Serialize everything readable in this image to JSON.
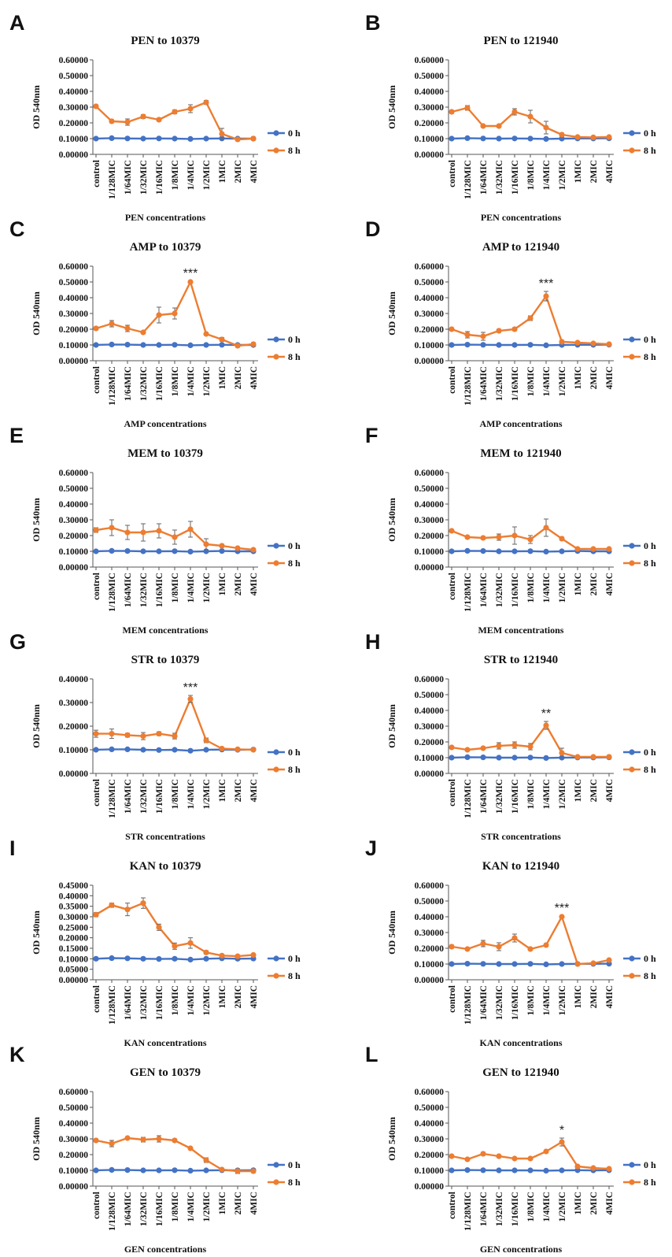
{
  "colors": {
    "series_0h": "#4472C4",
    "series_8h": "#ED7D31",
    "axis": "#555555",
    "errorbar": "#666666"
  },
  "chart_data": [
    {
      "panel": "A",
      "type": "line",
      "title": "PEN to 10379",
      "xlabel": "PEN concentrations",
      "ylabel": "OD 540nm",
      "ylim": [
        0,
        0.6
      ],
      "ytick_step": 0.1,
      "categories": [
        "control",
        "1/128MIC",
        "1/64MIC",
        "1/32MIC",
        "1/16MIC",
        "1/8MIC",
        "1/4MIC",
        "1/2MIC",
        "1MIC",
        "2MIC",
        "4MIC"
      ],
      "series": [
        {
          "name": "0 h",
          "values": [
            0.1,
            0.103,
            0.101,
            0.1,
            0.101,
            0.1,
            0.098,
            0.1,
            0.101,
            0.1,
            0.1
          ],
          "errors": [
            0.004,
            0.004,
            0.004,
            0.004,
            0.004,
            0.004,
            0.004,
            0.004,
            0.004,
            0.004,
            0.004
          ]
        },
        {
          "name": "8 h",
          "values": [
            0.305,
            0.21,
            0.205,
            0.24,
            0.22,
            0.27,
            0.29,
            0.33,
            0.13,
            0.095,
            0.1
          ],
          "errors": [
            0.01,
            0.01,
            0.02,
            0.012,
            0.01,
            0.012,
            0.025,
            0.012,
            0.035,
            0.01,
            0.01
          ]
        }
      ],
      "annotations": []
    },
    {
      "panel": "B",
      "type": "line",
      "title": "PEN to 121940",
      "xlabel": "PEN concentrations",
      "ylabel": "OD 540nm",
      "ylim": [
        0,
        0.6
      ],
      "ytick_step": 0.1,
      "categories": [
        "control",
        "1/128MIC",
        "1/64MIC",
        "1/32MIC",
        "1/16MIC",
        "1/8MIC",
        "1/4MIC",
        "1/2MIC",
        "1MIC",
        "2MIC",
        "4MIC"
      ],
      "series": [
        {
          "name": "0 h",
          "values": [
            0.1,
            0.103,
            0.101,
            0.1,
            0.101,
            0.1,
            0.098,
            0.1,
            0.101,
            0.101,
            0.102
          ],
          "errors": [
            0.004,
            0.004,
            0.004,
            0.004,
            0.004,
            0.004,
            0.004,
            0.004,
            0.004,
            0.004,
            0.004
          ]
        },
        {
          "name": "8 h",
          "values": [
            0.27,
            0.295,
            0.18,
            0.18,
            0.27,
            0.24,
            0.17,
            0.125,
            0.11,
            0.108,
            0.11
          ],
          "errors": [
            0.01,
            0.015,
            0.005,
            0.005,
            0.02,
            0.04,
            0.04,
            0.01,
            0.005,
            0.005,
            0.005
          ]
        }
      ],
      "annotations": []
    },
    {
      "panel": "C",
      "type": "line",
      "title": "AMP to 10379",
      "xlabel": "AMP concentrations",
      "ylabel": "OD 540nm",
      "ylim": [
        0,
        0.6
      ],
      "ytick_step": 0.1,
      "categories": [
        "control",
        "1/128MIC",
        "1/64MIC",
        "1/32MIC",
        "1/16MIC",
        "1/8MIC",
        "1/4MIC",
        "1/2MIC",
        "1MIC",
        "2MIC",
        "4MIC"
      ],
      "series": [
        {
          "name": "0 h",
          "values": [
            0.1,
            0.103,
            0.102,
            0.1,
            0.1,
            0.101,
            0.098,
            0.1,
            0.101,
            0.1,
            0.1
          ],
          "errors": [
            0.004,
            0.004,
            0.004,
            0.004,
            0.004,
            0.004,
            0.004,
            0.004,
            0.004,
            0.004,
            0.004
          ]
        },
        {
          "name": "8 h",
          "values": [
            0.205,
            0.235,
            0.205,
            0.18,
            0.29,
            0.3,
            0.5,
            0.17,
            0.135,
            0.095,
            0.105
          ],
          "errors": [
            0.01,
            0.02,
            0.02,
            0.008,
            0.05,
            0.035,
            0.005,
            0.005,
            0.012,
            0.01,
            0.01
          ]
        }
      ],
      "annotations": [
        {
          "category": "1/4MIC",
          "text": "***"
        }
      ]
    },
    {
      "panel": "D",
      "type": "line",
      "title": "AMP to 121940",
      "xlabel": "AMP concentrations",
      "ylabel": "OD 540nm",
      "ylim": [
        0,
        0.6
      ],
      "ytick_step": 0.1,
      "categories": [
        "control",
        "1/128MIC",
        "1/64MIC",
        "1/32MIC",
        "1/16MIC",
        "1/8MIC",
        "1/4MIC",
        "1/2MIC",
        "1MIC",
        "2MIC",
        "4MIC"
      ],
      "series": [
        {
          "name": "0 h",
          "values": [
            0.1,
            0.102,
            0.101,
            0.1,
            0.1,
            0.101,
            0.098,
            0.1,
            0.101,
            0.101,
            0.102
          ],
          "errors": [
            0.004,
            0.004,
            0.004,
            0.004,
            0.004,
            0.004,
            0.004,
            0.004,
            0.004,
            0.004,
            0.004
          ]
        },
        {
          "name": "8 h",
          "values": [
            0.2,
            0.165,
            0.155,
            0.19,
            0.2,
            0.27,
            0.41,
            0.12,
            0.115,
            0.11,
            0.105
          ],
          "errors": [
            0.008,
            0.02,
            0.025,
            0.01,
            0.01,
            0.015,
            0.03,
            0.01,
            0.005,
            0.005,
            0.005
          ]
        }
      ],
      "annotations": [
        {
          "category": "1/4MIC",
          "text": "***"
        }
      ]
    },
    {
      "panel": "E",
      "type": "line",
      "title": "MEM to 10379",
      "xlabel": "MEM concentrations",
      "ylabel": "OD 540nm",
      "ylim": [
        0,
        0.6
      ],
      "ytick_step": 0.1,
      "categories": [
        "control",
        "1/128MIC",
        "1/64MIC",
        "1/32MIC",
        "1/16MIC",
        "1/8MIC",
        "1/4MIC",
        "1/2MIC",
        "1MIC",
        "2MIC",
        "4MIC"
      ],
      "series": [
        {
          "name": "0 h",
          "values": [
            0.1,
            0.103,
            0.102,
            0.1,
            0.1,
            0.101,
            0.098,
            0.1,
            0.102,
            0.1,
            0.1
          ],
          "errors": [
            0.004,
            0.004,
            0.004,
            0.004,
            0.004,
            0.004,
            0.004,
            0.004,
            0.004,
            0.004,
            0.004
          ]
        },
        {
          "name": "8 h",
          "values": [
            0.235,
            0.25,
            0.22,
            0.22,
            0.23,
            0.19,
            0.24,
            0.145,
            0.135,
            0.12,
            0.11
          ],
          "errors": [
            0.015,
            0.05,
            0.045,
            0.055,
            0.045,
            0.045,
            0.05,
            0.035,
            0.01,
            0.005,
            0.008
          ]
        }
      ],
      "annotations": []
    },
    {
      "panel": "F",
      "type": "line",
      "title": "MEM to 121940",
      "xlabel": "MEM concentrations",
      "ylabel": "OD 540nm",
      "ylim": [
        0,
        0.6
      ],
      "ytick_step": 0.1,
      "categories": [
        "control",
        "1/128MIC",
        "1/64MIC",
        "1/32MIC",
        "1/16MIC",
        "1/8MIC",
        "1/4MIC",
        "1/2MIC",
        "1MIC",
        "2MIC",
        "4MIC"
      ],
      "series": [
        {
          "name": "0 h",
          "values": [
            0.1,
            0.103,
            0.102,
            0.1,
            0.1,
            0.101,
            0.098,
            0.1,
            0.102,
            0.1,
            0.1
          ],
          "errors": [
            0.004,
            0.004,
            0.004,
            0.004,
            0.004,
            0.004,
            0.004,
            0.004,
            0.004,
            0.004,
            0.004
          ]
        },
        {
          "name": "8 h",
          "values": [
            0.23,
            0.19,
            0.185,
            0.19,
            0.2,
            0.175,
            0.25,
            0.18,
            0.115,
            0.115,
            0.115
          ],
          "errors": [
            0.008,
            0.008,
            0.008,
            0.02,
            0.055,
            0.025,
            0.055,
            0.01,
            0.005,
            0.005,
            0.005
          ]
        }
      ],
      "annotations": []
    },
    {
      "panel": "G",
      "type": "line",
      "title": "STR to 10379",
      "xlabel": "STR concentrations",
      "ylabel": "OD 540nm",
      "ylim": [
        0,
        0.4
      ],
      "ytick_step": 0.1,
      "categories": [
        "control",
        "1/128MIC",
        "1/64MIC",
        "1/32MIC",
        "1/16MIC",
        "1/8MIC",
        "1/4MIC",
        "1/2MIC",
        "1MIC",
        "2MIC",
        "4MIC"
      ],
      "series": [
        {
          "name": "0 h",
          "values": [
            0.1,
            0.102,
            0.102,
            0.1,
            0.099,
            0.1,
            0.096,
            0.1,
            0.101,
            0.1,
            0.101
          ],
          "errors": [
            0.004,
            0.004,
            0.004,
            0.004,
            0.004,
            0.004,
            0.004,
            0.004,
            0.004,
            0.004,
            0.004
          ]
        },
        {
          "name": "8 h",
          "values": [
            0.168,
            0.168,
            0.162,
            0.158,
            0.168,
            0.158,
            0.315,
            0.14,
            0.105,
            0.102,
            0.1
          ],
          "errors": [
            0.015,
            0.02,
            0.008,
            0.015,
            0.008,
            0.012,
            0.015,
            0.01,
            0.005,
            0.005,
            0.005
          ]
        }
      ],
      "annotations": [
        {
          "category": "1/4MIC",
          "text": "***"
        }
      ]
    },
    {
      "panel": "H",
      "type": "line",
      "title": "STR to 121940",
      "xlabel": "STR concentrations",
      "ylabel": "OD 540nm",
      "ylim": [
        0,
        0.6
      ],
      "ytick_step": 0.1,
      "categories": [
        "control",
        "1/128MIC",
        "1/64MIC",
        "1/32MIC",
        "1/16MIC",
        "1/8MIC",
        "1/4MIC",
        "1/2MIC",
        "1MIC",
        "2MIC",
        "4MIC"
      ],
      "series": [
        {
          "name": "0 h",
          "values": [
            0.1,
            0.103,
            0.102,
            0.1,
            0.1,
            0.101,
            0.098,
            0.1,
            0.101,
            0.101,
            0.102
          ],
          "errors": [
            0.004,
            0.004,
            0.004,
            0.004,
            0.004,
            0.004,
            0.004,
            0.004,
            0.004,
            0.004,
            0.004
          ]
        },
        {
          "name": "8 h",
          "values": [
            0.165,
            0.15,
            0.16,
            0.175,
            0.18,
            0.17,
            0.305,
            0.13,
            0.105,
            0.105,
            0.105
          ],
          "errors": [
            0.008,
            0.008,
            0.008,
            0.02,
            0.02,
            0.02,
            0.025,
            0.03,
            0.005,
            0.005,
            0.01
          ]
        }
      ],
      "annotations": [
        {
          "category": "1/4MIC",
          "text": "**"
        }
      ]
    },
    {
      "panel": "I",
      "type": "line",
      "title": "KAN to 10379",
      "xlabel": "KAN concentrations",
      "ylabel": "OD 540nm",
      "ylim": [
        0,
        0.45
      ],
      "ytick_step": 0.05,
      "categories": [
        "control",
        "1/128MIC",
        "1/64MIC",
        "1/32MIC",
        "1/16MIC",
        "1/8MIC",
        "1/4MIC",
        "1/2MIC",
        "1MIC",
        "2MIC",
        "4MIC"
      ],
      "series": [
        {
          "name": "0 h",
          "values": [
            0.1,
            0.103,
            0.102,
            0.1,
            0.099,
            0.1,
            0.096,
            0.1,
            0.102,
            0.1,
            0.101
          ],
          "errors": [
            0.004,
            0.004,
            0.004,
            0.004,
            0.004,
            0.004,
            0.004,
            0.004,
            0.004,
            0.004,
            0.004
          ]
        },
        {
          "name": "8 h",
          "values": [
            0.31,
            0.355,
            0.335,
            0.365,
            0.25,
            0.16,
            0.175,
            0.13,
            0.115,
            0.112,
            0.118
          ],
          "errors": [
            0.01,
            0.01,
            0.03,
            0.025,
            0.015,
            0.015,
            0.025,
            0.008,
            0.005,
            0.005,
            0.005
          ]
        }
      ],
      "annotations": []
    },
    {
      "panel": "J",
      "type": "line",
      "title": "KAN to 121940",
      "xlabel": "KAN concentrations",
      "ylabel": "OD 540nm",
      "ylim": [
        0,
        0.6
      ],
      "ytick_step": 0.1,
      "categories": [
        "control",
        "1/128MIC",
        "1/64MIC",
        "1/32MIC",
        "1/16MIC",
        "1/8MIC",
        "1/4MIC",
        "1/2MIC",
        "1MIC",
        "2MIC",
        "4MIC"
      ],
      "series": [
        {
          "name": "0 h",
          "values": [
            0.1,
            0.102,
            0.101,
            0.1,
            0.1,
            0.101,
            0.098,
            0.1,
            0.101,
            0.101,
            0.102
          ],
          "errors": [
            0.004,
            0.004,
            0.004,
            0.004,
            0.004,
            0.004,
            0.004,
            0.004,
            0.004,
            0.004,
            0.004
          ]
        },
        {
          "name": "8 h",
          "values": [
            0.21,
            0.195,
            0.23,
            0.21,
            0.265,
            0.195,
            0.22,
            0.4,
            0.1,
            0.105,
            0.125
          ],
          "errors": [
            0.01,
            0.008,
            0.02,
            0.025,
            0.025,
            0.008,
            0.008,
            0.005,
            0.005,
            0.005,
            0.005
          ]
        }
      ],
      "annotations": [
        {
          "category": "1/2MIC",
          "text": "***"
        }
      ]
    },
    {
      "panel": "K",
      "type": "line",
      "title": "GEN to 10379",
      "xlabel": "GEN concentrations",
      "ylabel": "OD 540nm",
      "ylim": [
        0,
        0.6
      ],
      "ytick_step": 0.1,
      "categories": [
        "control",
        "1/128MIC",
        "1/64MIC",
        "1/32MIC",
        "1/16MIC",
        "1/8MIC",
        "1/4MIC",
        "1/2MIC",
        "1MIC",
        "2MIC",
        "4MIC"
      ],
      "series": [
        {
          "name": "0 h",
          "values": [
            0.1,
            0.103,
            0.102,
            0.1,
            0.1,
            0.101,
            0.098,
            0.1,
            0.101,
            0.1,
            0.101
          ],
          "errors": [
            0.004,
            0.004,
            0.004,
            0.004,
            0.004,
            0.004,
            0.004,
            0.004,
            0.004,
            0.004,
            0.004
          ]
        },
        {
          "name": "8 h",
          "values": [
            0.29,
            0.27,
            0.305,
            0.295,
            0.3,
            0.29,
            0.24,
            0.165,
            0.105,
            0.095,
            0.095
          ],
          "errors": [
            0.01,
            0.02,
            0.005,
            0.015,
            0.02,
            0.01,
            0.005,
            0.015,
            0.005,
            0.015,
            0.01
          ]
        }
      ],
      "annotations": []
    },
    {
      "panel": "L",
      "type": "line",
      "title": "GEN to 121940",
      "xlabel": "GEN concentrations",
      "ylabel": "OD 540nm",
      "ylim": [
        0,
        0.6
      ],
      "ytick_step": 0.1,
      "categories": [
        "control",
        "1/128MIC",
        "1/64MIC",
        "1/32MIC",
        "1/16MIC",
        "1/8MIC",
        "1/4MIC",
        "1/2MIC",
        "1MIC",
        "2MIC",
        "4MIC"
      ],
      "series": [
        {
          "name": "0 h",
          "values": [
            0.1,
            0.102,
            0.101,
            0.1,
            0.1,
            0.1,
            0.098,
            0.1,
            0.101,
            0.1,
            0.101
          ],
          "errors": [
            0.004,
            0.004,
            0.004,
            0.004,
            0.004,
            0.004,
            0.004,
            0.004,
            0.004,
            0.004,
            0.004
          ]
        },
        {
          "name": "8 h",
          "values": [
            0.19,
            0.17,
            0.205,
            0.19,
            0.175,
            0.175,
            0.22,
            0.28,
            0.125,
            0.115,
            0.11
          ],
          "errors": [
            0.008,
            0.008,
            0.01,
            0.008,
            0.005,
            0.008,
            0.008,
            0.025,
            0.005,
            0.005,
            0.005
          ]
        }
      ],
      "annotations": [
        {
          "category": "1/2MIC",
          "text": "*"
        }
      ]
    }
  ]
}
